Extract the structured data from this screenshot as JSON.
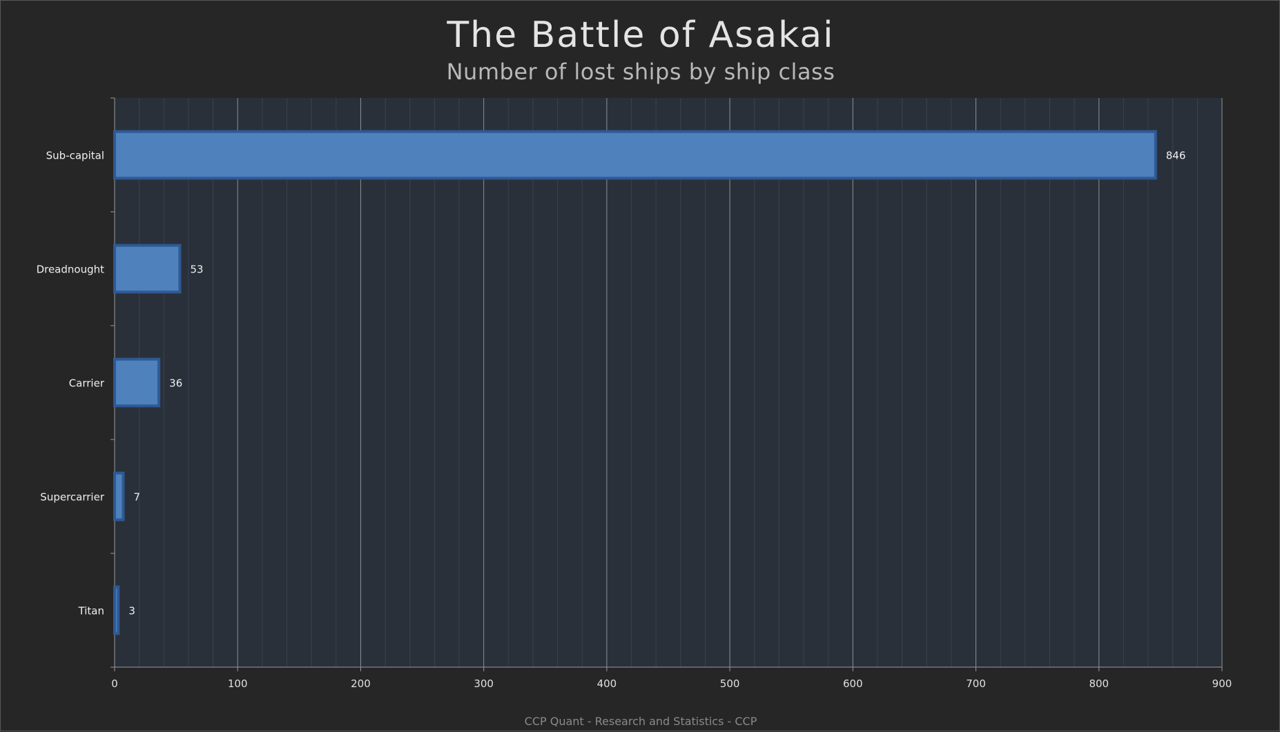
{
  "chart_data": {
    "type": "bar",
    "orientation": "horizontal",
    "title": "The Battle of Asakai",
    "subtitle": "Number of lost ships by ship class",
    "categories": [
      "Sub-capital",
      "Dreadnought",
      "Carrier",
      "Supercarrier",
      "Titan"
    ],
    "values": [
      846,
      53,
      36,
      7,
      3
    ],
    "data_labels": [
      "846",
      "53",
      "36",
      "7",
      "3"
    ],
    "xlim": [
      0,
      900
    ],
    "x_ticks": [
      0,
      100,
      200,
      300,
      400,
      500,
      600,
      700,
      800,
      900
    ],
    "x_tick_labels": [
      "0",
      "100",
      "200",
      "300",
      "400",
      "500",
      "600",
      "700",
      "800",
      "900"
    ],
    "grid": true,
    "minor_grid_step": 20,
    "bar_color": "#4f81bd",
    "bar_edge_color": "#2e5a94",
    "plot_background": "#2a303a",
    "credit": "CCP Quant - Research and Statistics - CCP"
  }
}
